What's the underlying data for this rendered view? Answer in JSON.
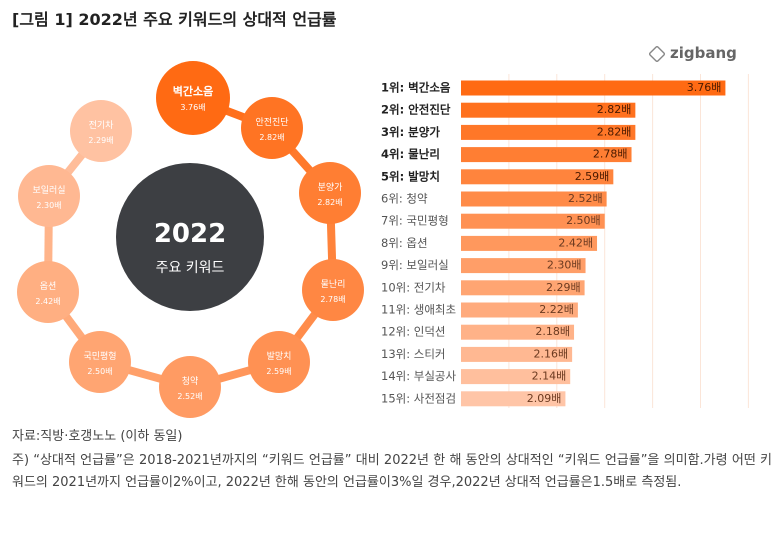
{
  "title": "[그림 1] 2022년 주요 키워드의 상대적 언급률",
  "logo": "zigbang",
  "center": {
    "year": "2022",
    "label": "주요 키워드"
  },
  "chart_data": {
    "type": "bar",
    "orientation": "horizontal",
    "xlim": [
      1,
      4
    ],
    "grid": true,
    "categories": [
      "1위: 벽간소음",
      "2위: 안전진단",
      "3위: 분양가",
      "4위: 물난리",
      "5위: 발망치",
      "6위: 청약",
      "7위: 국민평형",
      "8위: 옵션",
      "9위: 보일러실",
      "10위: 전기차",
      "11위: 생애최초",
      "12위: 인덕션",
      "13위: 스티커",
      "14위: 부실공사",
      "15위: 사전점검"
    ],
    "keywords": [
      "벽간소음",
      "안전진단",
      "분양가",
      "물난리",
      "발망치",
      "청약",
      "국민평형",
      "옵션",
      "보일러실",
      "전기차"
    ],
    "values": [
      3.76,
      2.82,
      2.82,
      2.78,
      2.59,
      2.52,
      2.5,
      2.42,
      2.3,
      2.29,
      2.22,
      2.18,
      2.16,
      2.14,
      2.09
    ],
    "labels": [
      "3.76배",
      "2.82배",
      "2.82배",
      "2.78배",
      "2.59배",
      "2.52배",
      "2.50배",
      "2.42배",
      "2.30배",
      "2.29배",
      "2.22배",
      "2.18배",
      "2.16배",
      "2.14배",
      "2.09배"
    ]
  },
  "notes": [
    "자료:직방·호갱노노 (이하 동일)",
    "주) “상대적 언급률”은 2018-2021년까지의 “키워드 언급률” 대비 2022년 한 해 동안의 상대적인 “키워드 언급률”을 의미함.가령 어떤 키워드의 2021년까지 언급률이2%이고, 2022년 한해 동안의 언급률이3%일 경우,2022년 상대적 언급률은1.5배로 측정됨."
  ]
}
